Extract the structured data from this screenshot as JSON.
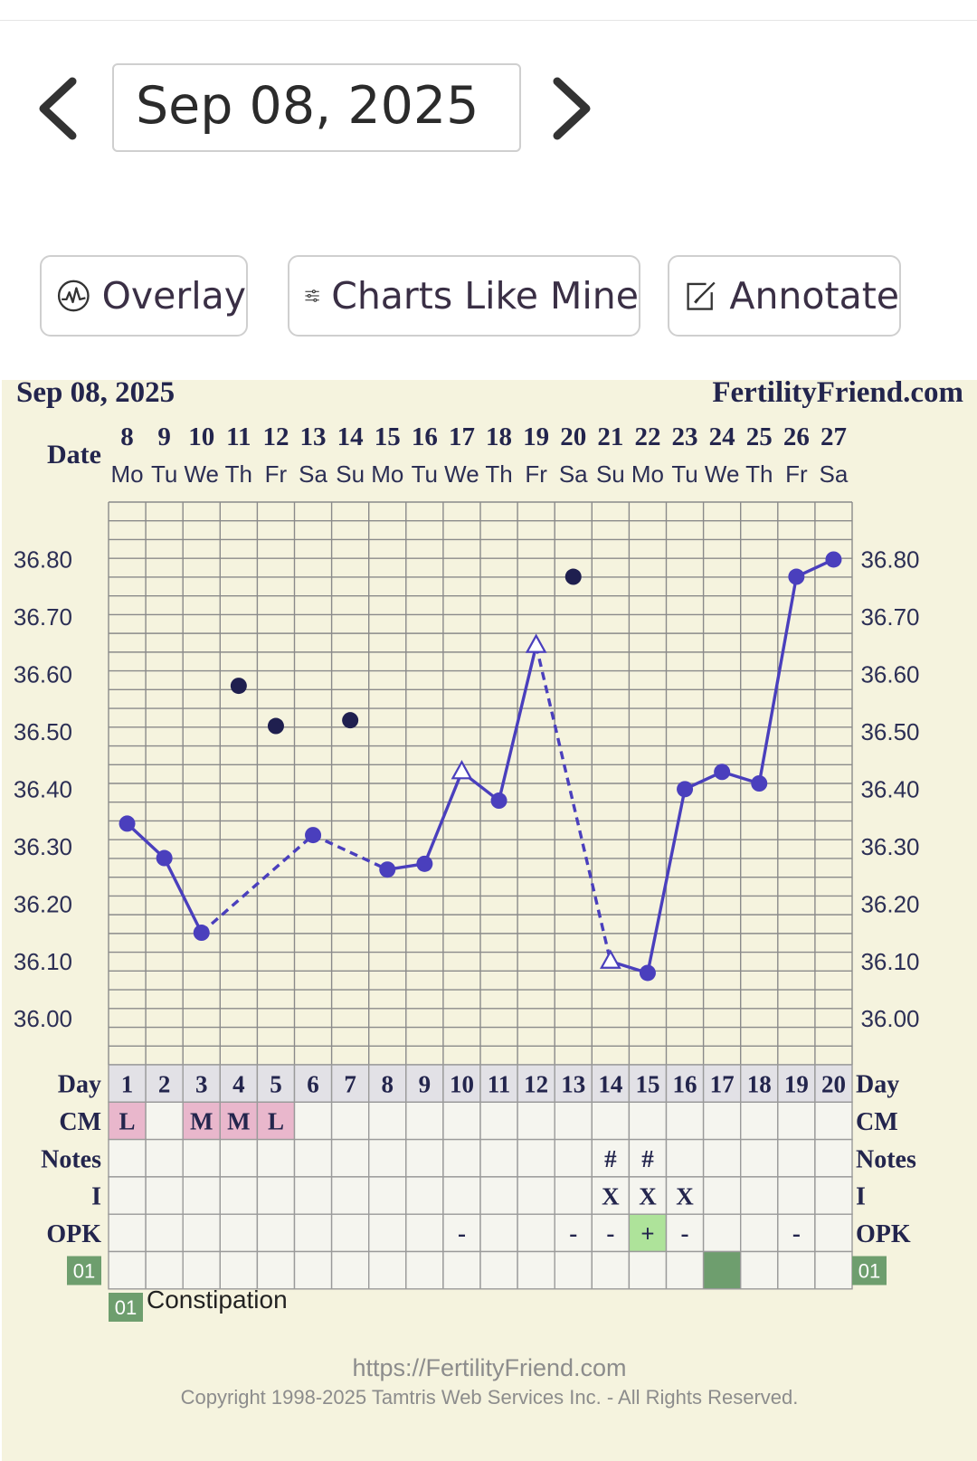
{
  "header": {
    "date_value": "Sep 08, 2025"
  },
  "toolbar": {
    "overlay_label": "Overlay",
    "charts_like_mine_label": "Charts Like Mine",
    "annotate_label": "Annotate"
  },
  "chart_header": {
    "date": "Sep 08, 2025",
    "site": "FertilityFriend.com"
  },
  "row_labels": {
    "date": "Date",
    "day": "Day",
    "cm": "CM",
    "notes": "Notes",
    "intercourse": "I",
    "opk": "OPK",
    "symptom_code": "01"
  },
  "legend": {
    "code": "01",
    "text": "Constipation"
  },
  "footer": {
    "url": "https://FertilityFriend.com",
    "copyright": "Copyright 1998-2025 Tamtris Web Services Inc. - All Rights Reserved."
  },
  "colors": {
    "line": "#4a3fbd",
    "discarded_point": "#1f1f4f",
    "chart_background": "#f5f3de",
    "cm_cell": "#e9b7cc",
    "opk_positive": "#aee39a",
    "symptom_cell": "#6e9e6e"
  },
  "chart_data": {
    "type": "line",
    "dates": [
      "8",
      "9",
      "10",
      "11",
      "12",
      "13",
      "14",
      "15",
      "16",
      "17",
      "18",
      "19",
      "20",
      "21",
      "22",
      "23",
      "24",
      "25",
      "26",
      "27"
    ],
    "weekdays": [
      "Mo",
      "Tu",
      "We",
      "Th",
      "Fr",
      "Sa",
      "Su",
      "Mo",
      "Tu",
      "We",
      "Th",
      "Fr",
      "Sa",
      "Su",
      "Mo",
      "Tu",
      "We",
      "Th",
      "Fr",
      "Sa"
    ],
    "cycle_days": [
      "1",
      "2",
      "3",
      "4",
      "5",
      "6",
      "7",
      "8",
      "9",
      "10",
      "11",
      "12",
      "13",
      "14",
      "15",
      "16",
      "17",
      "18",
      "19",
      "20"
    ],
    "y_ticks": [
      "36.80",
      "36.70",
      "36.60",
      "36.50",
      "36.40",
      "36.30",
      "36.20",
      "36.10",
      "36.00"
    ],
    "ylim": [
      35.92,
      36.9
    ],
    "temps": [
      36.34,
      36.28,
      36.15,
      null,
      null,
      36.32,
      null,
      36.26,
      36.27,
      36.43,
      36.38,
      36.65,
      null,
      36.1,
      36.08,
      36.4,
      36.43,
      36.41,
      36.77,
      36.8
    ],
    "temp_markers": [
      "circle",
      "circle",
      "circle",
      null,
      null,
      "circle",
      null,
      "circle",
      "circle",
      "triangle",
      "circle",
      "triangle",
      null,
      "triangle",
      "circle",
      "circle",
      "circle",
      "circle",
      "circle",
      "circle"
    ],
    "segments": [
      {
        "from": 0,
        "to": 1,
        "style": "solid"
      },
      {
        "from": 1,
        "to": 2,
        "style": "solid"
      },
      {
        "from": 2,
        "to": 5,
        "style": "dashed"
      },
      {
        "from": 5,
        "to": 7,
        "style": "dashed"
      },
      {
        "from": 7,
        "to": 8,
        "style": "solid"
      },
      {
        "from": 8,
        "to": 9,
        "style": "solid"
      },
      {
        "from": 9,
        "to": 10,
        "style": "solid"
      },
      {
        "from": 10,
        "to": 11,
        "style": "solid"
      },
      {
        "from": 11,
        "to": 13,
        "style": "dashed"
      },
      {
        "from": 13,
        "to": 14,
        "style": "solid"
      },
      {
        "from": 14,
        "to": 15,
        "style": "solid"
      },
      {
        "from": 15,
        "to": 16,
        "style": "solid"
      },
      {
        "from": 16,
        "to": 17,
        "style": "solid"
      },
      {
        "from": 17,
        "to": 18,
        "style": "solid"
      },
      {
        "from": 18,
        "to": 19,
        "style": "solid"
      }
    ],
    "discarded": [
      {
        "day": 3,
        "value": 36.58
      },
      {
        "day": 4,
        "value": 36.51
      },
      {
        "day": 6,
        "value": 36.52
      },
      {
        "day": 12,
        "value": 36.77
      }
    ],
    "cm": [
      "L",
      "",
      "M",
      "M",
      "L",
      "",
      "",
      "",
      "",
      "",
      "",
      "",
      "",
      "",
      "",
      "",
      "",
      "",
      "",
      ""
    ],
    "notes": [
      "",
      "",
      "",
      "",
      "",
      "",
      "",
      "",
      "",
      "",
      "",
      "",
      "",
      "#",
      "#",
      "",
      "",
      "",
      "",
      ""
    ],
    "intercourse": [
      "",
      "",
      "",
      "",
      "",
      "",
      "",
      "",
      "",
      "",
      "",
      "",
      "",
      "X",
      "X",
      "X",
      "",
      "",
      "",
      ""
    ],
    "opk": [
      "",
      "",
      "",
      "",
      "",
      "",
      "",
      "",
      "",
      "-",
      "",
      "",
      "-",
      "-",
      "+",
      "-",
      "",
      "",
      "-",
      ""
    ],
    "symptom_01": [
      false,
      false,
      false,
      false,
      false,
      false,
      false,
      false,
      false,
      false,
      false,
      false,
      false,
      false,
      false,
      false,
      true,
      false,
      false,
      false
    ]
  }
}
